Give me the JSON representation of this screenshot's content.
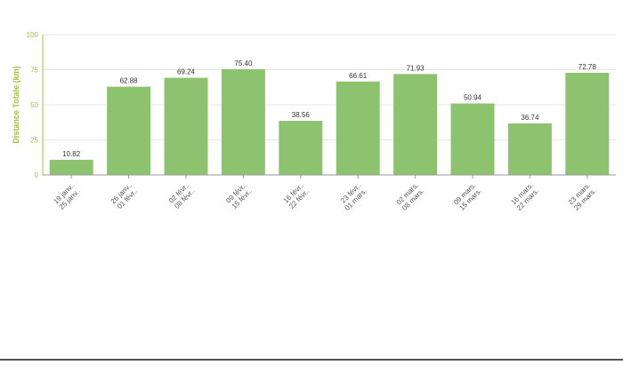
{
  "chart_data": {
    "type": "bar",
    "title": "",
    "xlabel": "",
    "ylabel": "Distance Totale (km)",
    "ylim": [
      0,
      100
    ],
    "yticks": [
      0,
      25,
      50,
      75,
      100
    ],
    "grid": true,
    "legend": "none",
    "categories": [
      [
        "19 janv..",
        "25 janv.."
      ],
      [
        "26 janv..",
        "01 févr.."
      ],
      [
        "02 févr..",
        "08 févr.."
      ],
      [
        "09 févr..",
        "15 févr.."
      ],
      [
        "16 févr..",
        "22 févr.."
      ],
      [
        "23 févr..",
        "01 mars."
      ],
      [
        "02 mars.",
        "08 mars."
      ],
      [
        "09 mars.",
        "15 mars."
      ],
      [
        "16 mars.",
        "22 mars."
      ],
      [
        "23 mars.",
        "29 mars."
      ]
    ],
    "values": [
      10.82,
      62.88,
      69.24,
      75.4,
      38.56,
      66.61,
      71.93,
      50.94,
      36.74,
      72.78
    ],
    "data_labels": [
      "10.82",
      "62.88",
      "69.24",
      "75.40",
      "38.56",
      "66.61",
      "71.93",
      "50.94",
      "36.74",
      "72.78"
    ]
  },
  "colors": {
    "bar": "#8dc26f",
    "axis": "#9bc23c",
    "ylabel": "#9bc23c",
    "grid": "#e6e6e6",
    "tick_text": "#555555",
    "value_text": "#333333"
  }
}
